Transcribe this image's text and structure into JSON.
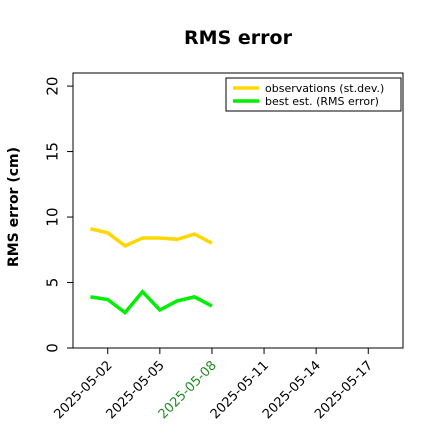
{
  "chart_data": {
    "type": "line",
    "title": "RMS error",
    "xlabel": "",
    "ylabel": "RMS error (cm)",
    "ylim": [
      0,
      21
    ],
    "yticks": [
      0,
      5,
      10,
      15,
      20
    ],
    "xlim": [
      "2025-04-30",
      "2025-05-19"
    ],
    "xticks": [
      "2025-05-02",
      "2025-05-05",
      "2025-05-08",
      "2025-05-11",
      "2025-05-14",
      "2025-05-17"
    ],
    "highlighted_xtick": "2025-05-08",
    "highlight_color": "#228b22",
    "x": [
      "2025-05-01",
      "2025-05-02",
      "2025-05-03",
      "2025-05-04",
      "2025-05-05",
      "2025-05-06",
      "2025-05-07",
      "2025-05-08"
    ],
    "series": [
      {
        "name": "observations (st.dev.)",
        "color": "#ffd700",
        "values": [
          9.1,
          8.8,
          7.8,
          8.4,
          8.4,
          8.3,
          8.7,
          8.0
        ]
      },
      {
        "name": "best est. (RMS error)",
        "color": "#00ee00",
        "values": [
          3.9,
          3.7,
          2.7,
          4.3,
          2.9,
          3.6,
          3.9,
          3.2
        ]
      }
    ],
    "grid": false,
    "legend_position": "top-right"
  }
}
